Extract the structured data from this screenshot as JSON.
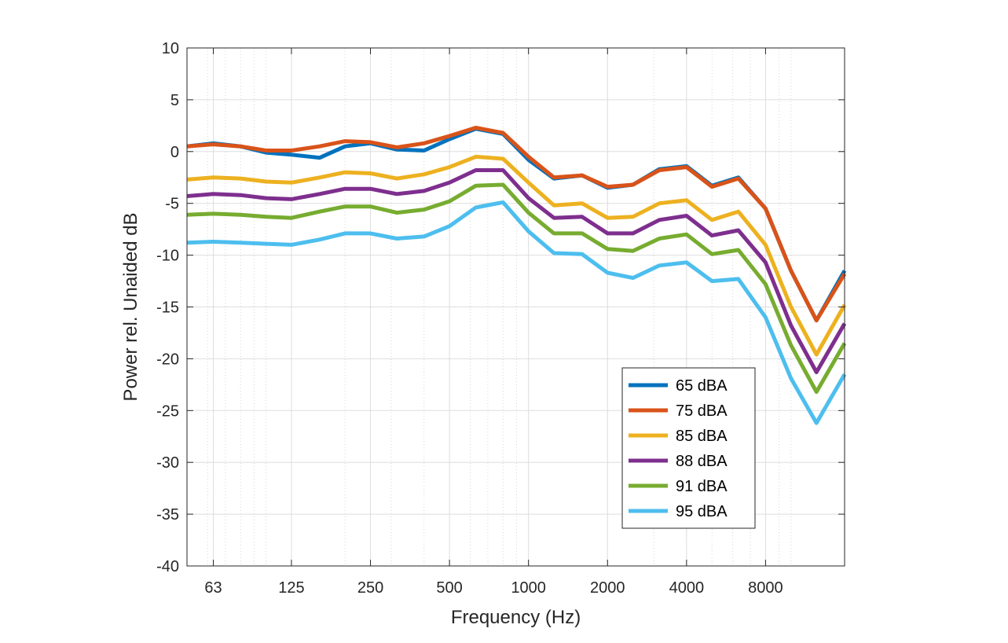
{
  "chart_data": {
    "type": "line",
    "title": "",
    "xlabel": "Frequency (Hz)",
    "ylabel": "Power rel. Unaided dB",
    "xscale": "log",
    "xlim": [
      50,
      16000
    ],
    "ylim": [
      -40,
      10
    ],
    "grid": true,
    "x_ticks": [
      63,
      125,
      250,
      500,
      1000,
      2000,
      4000,
      8000
    ],
    "x_tick_labels": [
      "63",
      "125",
      "250",
      "500",
      "1000",
      "2000",
      "4000",
      "8000"
    ],
    "y_ticks": [
      10,
      5,
      0,
      -5,
      -10,
      -15,
      -20,
      -25,
      -30,
      -35,
      -40
    ],
    "y_tick_labels": [
      "10",
      "5",
      "0",
      "-5",
      "-10",
      "-15",
      "-20",
      "-25",
      "-30",
      "-35",
      "-40"
    ],
    "legend_position": "bottom-right",
    "x": [
      50,
      63,
      80,
      100,
      125,
      160,
      200,
      250,
      315,
      400,
      500,
      630,
      800,
      1000,
      1250,
      1600,
      2000,
      2500,
      3150,
      4000,
      5000,
      6300,
      8000,
      10000,
      12500,
      16000
    ],
    "series": [
      {
        "name": "65 dBA",
        "color": "#0072BD",
        "values": [
          0.5,
          0.8,
          0.5,
          -0.1,
          -0.3,
          -0.6,
          0.5,
          0.8,
          0.2,
          0.1,
          1.2,
          2.2,
          1.7,
          -0.8,
          -2.6,
          -2.3,
          -3.5,
          -3.2,
          -1.7,
          -1.4,
          -3.3,
          -2.5,
          -5.5,
          -11.5,
          -16.3,
          -11.5
        ]
      },
      {
        "name": "75 dBA",
        "color": "#D95319",
        "values": [
          0.5,
          0.7,
          0.5,
          0.1,
          0.1,
          0.5,
          1.0,
          0.9,
          0.4,
          0.8,
          1.5,
          2.3,
          1.8,
          -0.5,
          -2.5,
          -2.3,
          -3.4,
          -3.2,
          -1.8,
          -1.5,
          -3.4,
          -2.6,
          -5.5,
          -11.5,
          -16.3,
          -11.8
        ]
      },
      {
        "name": "85 dBA",
        "color": "#EDB120",
        "values": [
          -2.7,
          -2.5,
          -2.6,
          -2.9,
          -3.0,
          -2.5,
          -2.0,
          -2.1,
          -2.6,
          -2.2,
          -1.5,
          -0.5,
          -0.7,
          -3.0,
          -5.2,
          -5.0,
          -6.4,
          -6.3,
          -5.0,
          -4.7,
          -6.6,
          -5.8,
          -9.0,
          -15.0,
          -19.6,
          -14.8
        ]
      },
      {
        "name": "88 dBA",
        "color": "#7E2F8E",
        "values": [
          -4.3,
          -4.1,
          -4.2,
          -4.5,
          -4.6,
          -4.1,
          -3.6,
          -3.6,
          -4.1,
          -3.8,
          -3.0,
          -1.8,
          -1.8,
          -4.5,
          -6.4,
          -6.3,
          -7.9,
          -7.9,
          -6.6,
          -6.2,
          -8.1,
          -7.6,
          -10.7,
          -16.8,
          -21.3,
          -16.6
        ]
      },
      {
        "name": "91 dBA",
        "color": "#77AC30",
        "values": [
          -6.1,
          -6.0,
          -6.1,
          -6.3,
          -6.4,
          -5.8,
          -5.3,
          -5.3,
          -5.9,
          -5.6,
          -4.8,
          -3.3,
          -3.2,
          -5.9,
          -7.9,
          -7.9,
          -9.4,
          -9.6,
          -8.4,
          -8.0,
          -9.9,
          -9.5,
          -12.8,
          -18.7,
          -23.2,
          -18.5
        ]
      },
      {
        "name": "95 dBA",
        "color": "#4DBEEE",
        "values": [
          -8.8,
          -8.7,
          -8.8,
          -8.9,
          -9.0,
          -8.5,
          -7.9,
          -7.9,
          -8.4,
          -8.2,
          -7.2,
          -5.4,
          -4.9,
          -7.7,
          -9.8,
          -9.9,
          -11.7,
          -12.2,
          -11.0,
          -10.7,
          -12.5,
          -12.3,
          -16.0,
          -21.9,
          -26.2,
          -21.5
        ]
      }
    ]
  }
}
